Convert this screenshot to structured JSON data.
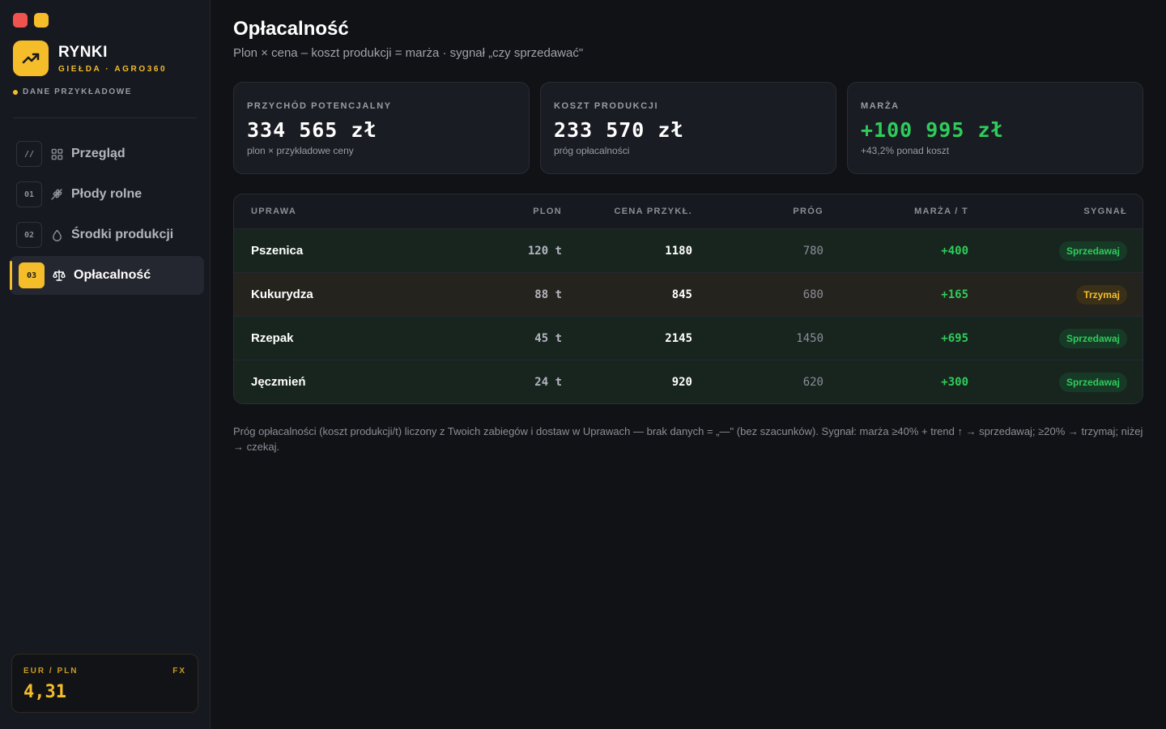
{
  "sidebar": {
    "brand": {
      "title": "RYNKI",
      "subtitle": "GIEŁDA · AGRO360"
    },
    "sample_badge": "DANE PRZYKŁADOWE",
    "nav": [
      {
        "num": "//",
        "label": "Przegląd",
        "icon": "grid-icon"
      },
      {
        "num": "01",
        "label": "Płody rolne",
        "icon": "wheat-icon"
      },
      {
        "num": "02",
        "label": "Środki produkcji",
        "icon": "drop-icon"
      },
      {
        "num": "03",
        "label": "Opłacalność",
        "icon": "scale-icon",
        "active": true
      }
    ],
    "fx": {
      "pair": "EUR / PLN",
      "tag": "FX",
      "value": "4,31"
    }
  },
  "header": {
    "title": "Opłacalność",
    "subtitle": "Plon × cena – koszt produkcji = marża · sygnał „czy sprzedawać\""
  },
  "cards": [
    {
      "label": "PRZYCHÓD POTENCJALNY",
      "value": "334 565 zł",
      "note": "plon × przykładowe ceny"
    },
    {
      "label": "KOSZT PRODUKCJI",
      "value": "233 570 zł",
      "note": "próg opłacalności"
    },
    {
      "label": "MARŻA",
      "value": "+100 995 zł",
      "note": "+43,2% ponad koszt"
    }
  ],
  "table": {
    "headers": [
      "UPRAWA",
      "PLON",
      "CENA PRZYKŁ.",
      "PRÓG",
      "MARŻA / T",
      "SYGNAŁ"
    ],
    "rows": [
      {
        "crop": "Pszenica",
        "yield": "120 t",
        "price": "1180",
        "threshold": "780",
        "margin": "+400",
        "signal": "Sprzedawaj"
      },
      {
        "crop": "Kukurydza",
        "yield": "88 t",
        "price": "845",
        "threshold": "680",
        "margin": "+165",
        "signal": "Trzymaj"
      },
      {
        "crop": "Rzepak",
        "yield": "45 t",
        "price": "2145",
        "threshold": "1450",
        "margin": "+695",
        "signal": "Sprzedawaj"
      },
      {
        "crop": "Jęczmień",
        "yield": "24 t",
        "price": "920",
        "threshold": "620",
        "margin": "+300",
        "signal": "Sprzedawaj"
      }
    ]
  },
  "footnote": "Próg opłacalności (koszt produkcji/t) liczony z Twoich zabiegów i dostaw w Uprawach — brak danych = „—\" (bez szacunków). Sygnał: marża ≥40% + trend ↑ → sprzedawaj; ≥20% → trzymaj; niżej → czekaj.",
  "colors": {
    "accent": "#f5bd2a",
    "positive": "#2ecc5a",
    "background": "#111216"
  }
}
